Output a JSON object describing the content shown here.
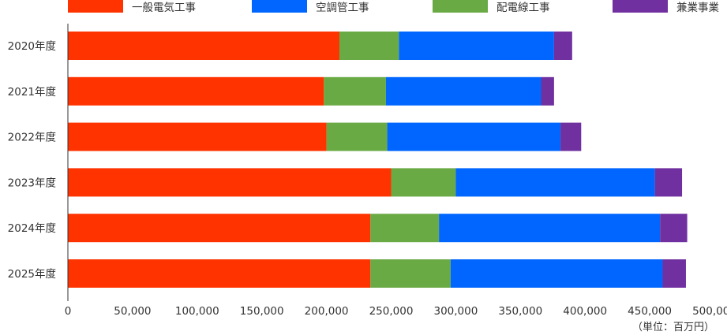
{
  "chart_data": {
    "type": "bar",
    "orientation": "horizontal",
    "stacked": true,
    "categories": [
      "2020年度",
      "2021年度",
      "2022年度",
      "2023年度",
      "2024年度",
      "2025年度"
    ],
    "series": [
      {
        "name": "一般電気工事",
        "color": "#ff3300",
        "values": [
          210000,
          198000,
          200000,
          250000,
          234000,
          234000
        ]
      },
      {
        "name": "配電線工事",
        "color": "#6aaa45",
        "values": [
          46000,
          48000,
          47000,
          50000,
          53000,
          62000
        ]
      },
      {
        "name": "空調管工事",
        "color": "#0066ff",
        "values": [
          120000,
          120000,
          134000,
          154000,
          171000,
          164000
        ]
      },
      {
        "name": "兼業事業",
        "color": "#7030a0",
        "values": [
          14000,
          10000,
          16000,
          21000,
          21000,
          18000
        ]
      }
    ],
    "xlim": [
      0,
      500000
    ],
    "xticks": [
      "0",
      "50,000",
      "100,000",
      "150,000",
      "200,000",
      "250,000",
      "300,000",
      "350,000",
      "400,000",
      "450,000",
      "500,000"
    ],
    "legend_position": "top",
    "legend_order": [
      "一般電気工事",
      "空調管工事",
      "配電線工事",
      "兼業事業"
    ],
    "unit_label": "（単位：百万円）",
    "grid": false
  }
}
